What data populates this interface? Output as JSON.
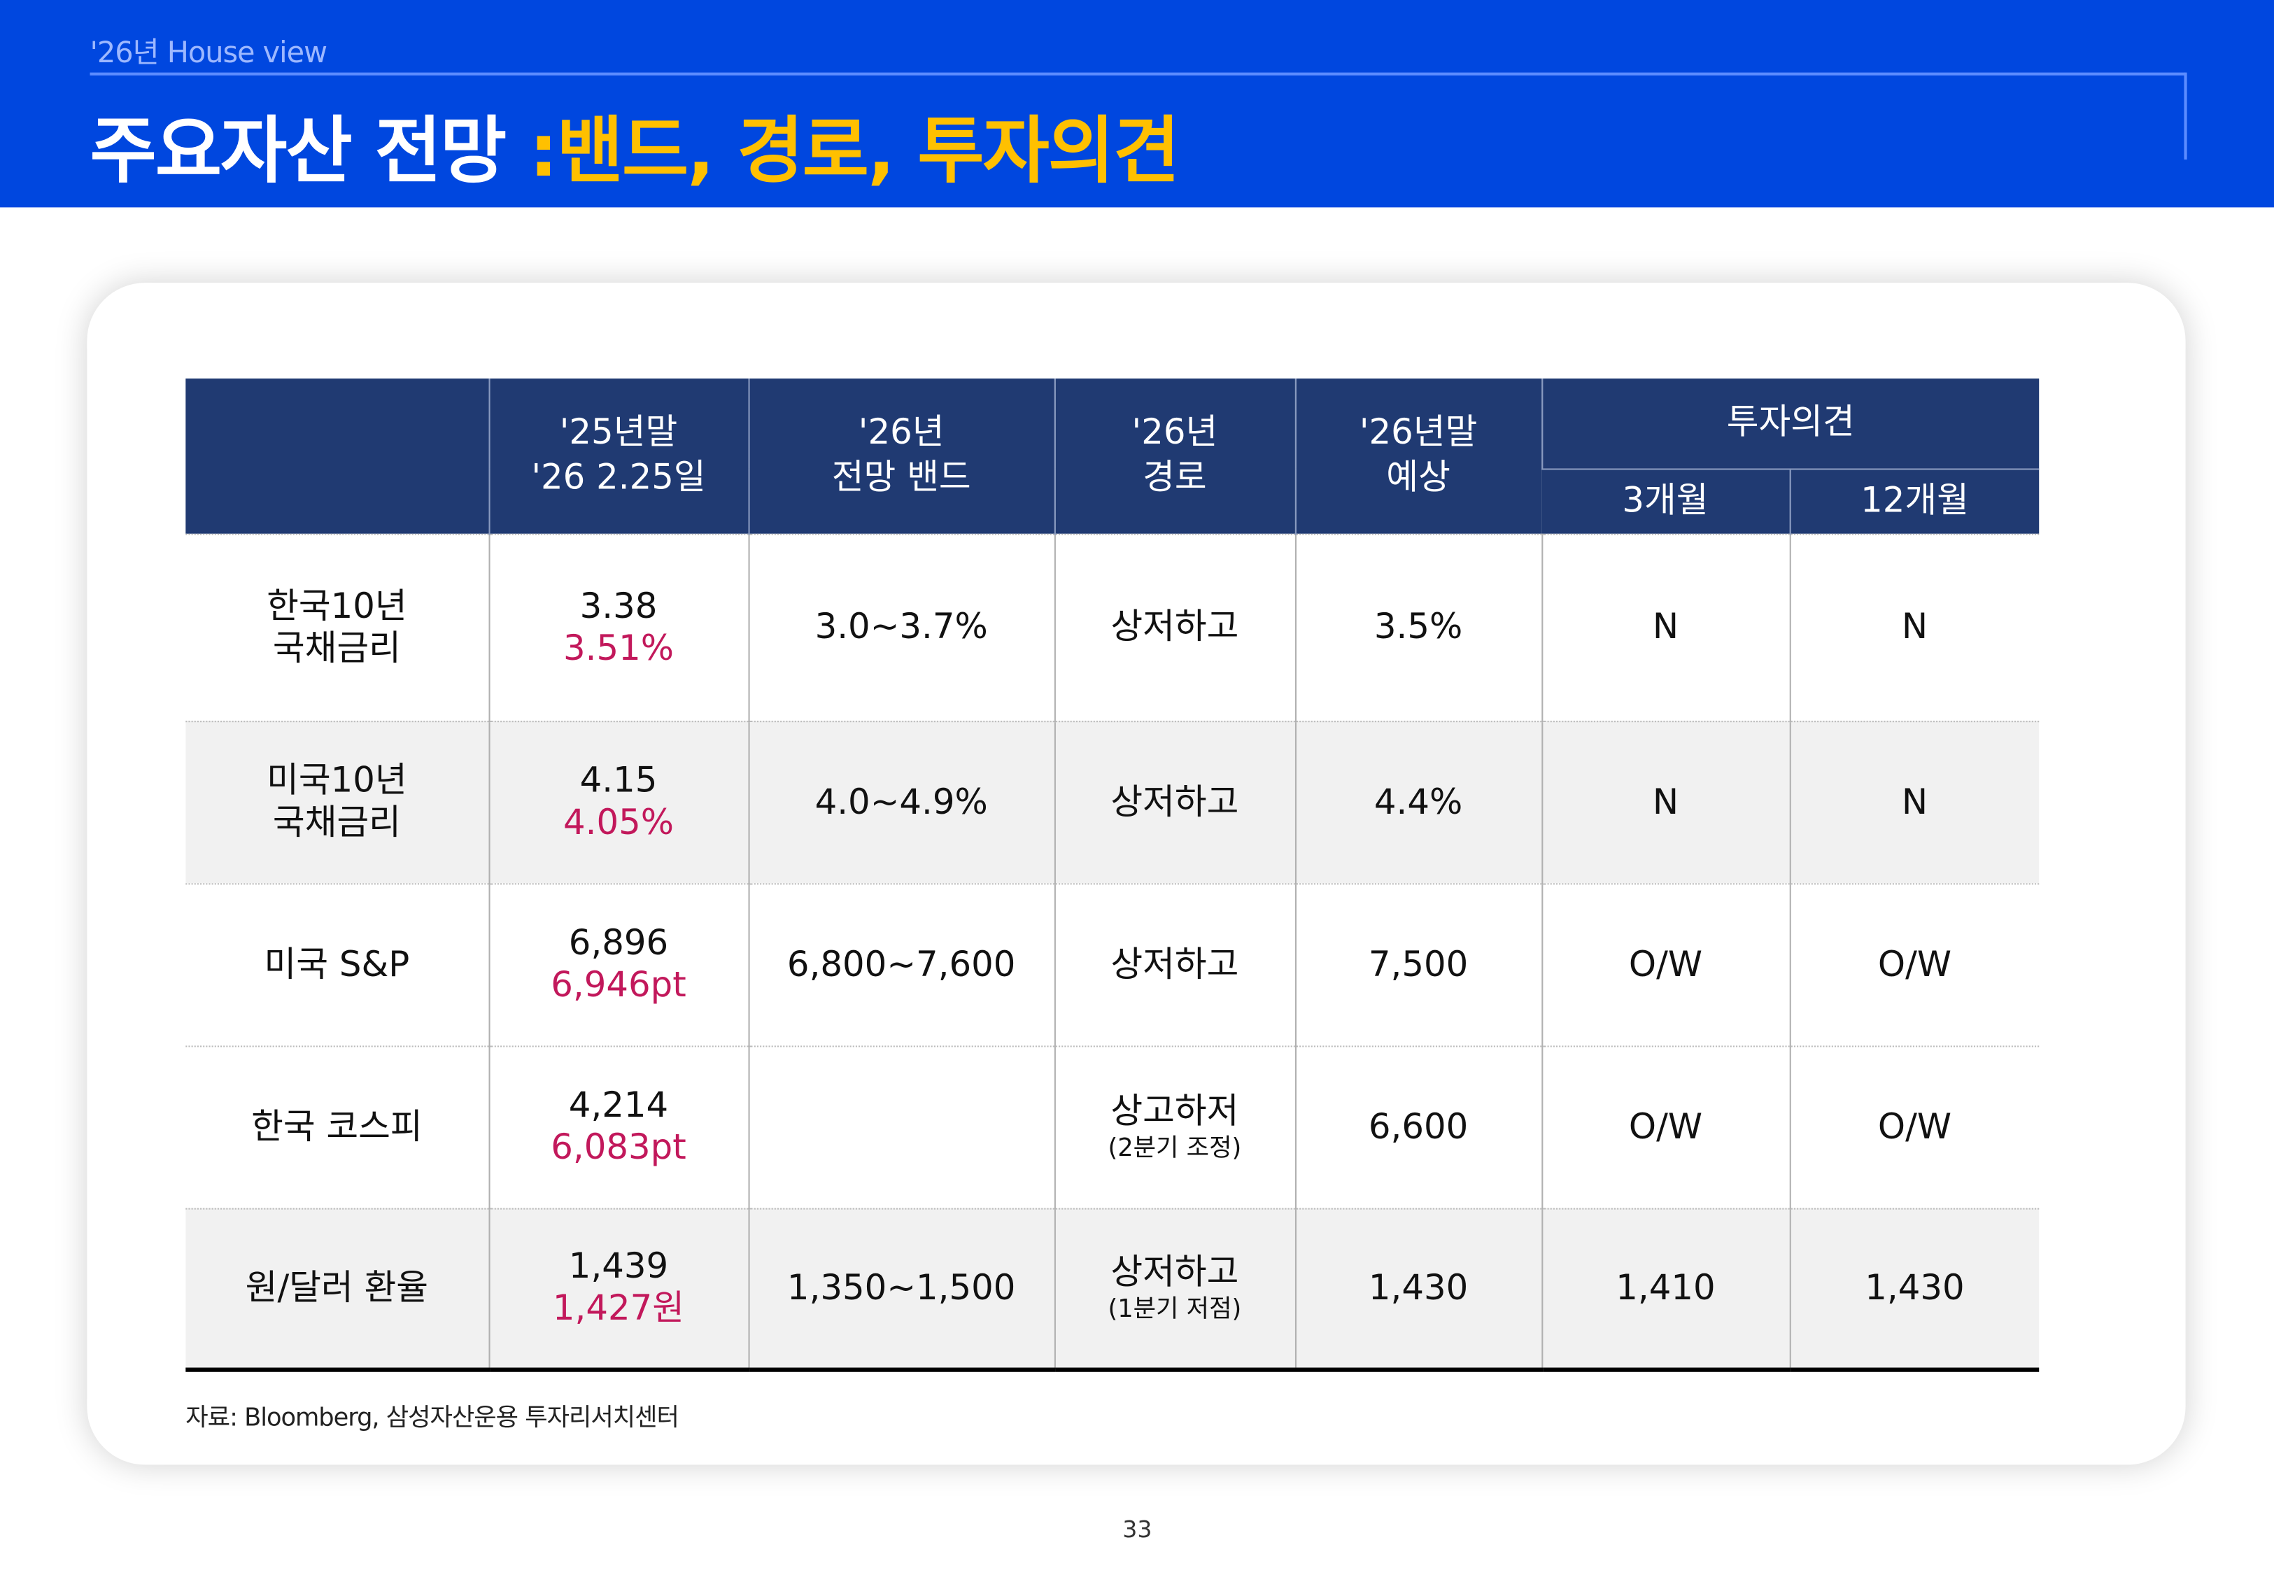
{
  "header": {
    "subtitle": "'26년 House view",
    "title_main": "주요자산 전망 ",
    "title_accent": ":밴드, 경로, 투자의견"
  },
  "colors": {
    "header_bg": "#0047DF",
    "accent": "#FFC000",
    "table_header": "#203A72",
    "highlight": "#C2185B"
  },
  "table": {
    "headers": {
      "c1": [
        "'25년말",
        "'26 2.25일"
      ],
      "c2": [
        "'26년",
        "전망 밴드"
      ],
      "c3": [
        "'26년",
        "경로"
      ],
      "c4": [
        "'26년말",
        "예상"
      ],
      "opinion": "투자의견",
      "m3": "3개월",
      "m12": "12개월"
    },
    "rows": [
      {
        "asset": [
          "한국10년",
          "국채금리"
        ],
        "prev": "3.38",
        "cur": "3.51%",
        "band": "3.0~3.7%",
        "path": "상저하고",
        "path_note": "",
        "target": "3.5%",
        "m3": "N",
        "m12": "N"
      },
      {
        "asset": [
          "미국10년",
          "국채금리"
        ],
        "prev": "4.15",
        "cur": "4.05%",
        "band": "4.0~4.9%",
        "path": "상저하고",
        "path_note": "",
        "target": "4.4%",
        "m3": "N",
        "m12": "N"
      },
      {
        "asset": [
          "미국 S&P",
          ""
        ],
        "prev": "6,896",
        "cur": "6,946pt",
        "band": "6,800~7,600",
        "path": "상저하고",
        "path_note": "",
        "target": "7,500",
        "m3": "O/W",
        "m12": "O/W"
      },
      {
        "asset": [
          "한국 코스피",
          ""
        ],
        "prev": "4,214",
        "cur": "6,083pt",
        "band": "",
        "path": "상고하저",
        "path_note": "(2분기 조정)",
        "target": "6,600",
        "m3": "O/W",
        "m12": "O/W"
      },
      {
        "asset": [
          "원/달러 환율",
          ""
        ],
        "prev": "1,439",
        "cur": "1,427원",
        "band": "1,350~1,500",
        "path": "상저하고",
        "path_note": "(1분기 저점)",
        "target": "1,430",
        "m3": "1,410",
        "m12": "1,430"
      }
    ]
  },
  "footer": {
    "source": "자료: Bloomberg, 삼성자산운용 투자리서치센터",
    "page": "33"
  }
}
